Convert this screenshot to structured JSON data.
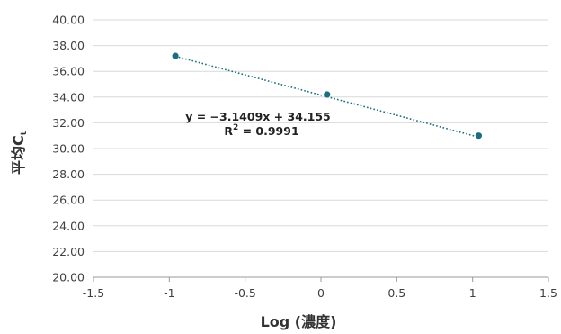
{
  "chart_data": {
    "type": "scatter",
    "xlabel": "Log (濃度)",
    "ylabel": {
      "main": "平均C",
      "subscript": "t"
    },
    "xlim": [
      -1.5,
      1.5
    ],
    "ylim": [
      20,
      40
    ],
    "x_ticks": [
      "-1.5",
      "-1",
      "-0.5",
      "0",
      "0.5",
      "1",
      "1.5"
    ],
    "y_ticks": [
      "20.00",
      "22.00",
      "24.00",
      "26.00",
      "28.00",
      "30.00",
      "32.00",
      "34.00",
      "36.00",
      "38.00",
      "40.00"
    ],
    "grid": true,
    "series": [
      {
        "points": [
          {
            "x": -0.96,
            "y": 37.2
          },
          {
            "x": 0.04,
            "y": 34.2
          },
          {
            "x": 1.04,
            "y": 31.0
          }
        ]
      }
    ],
    "trendline": {
      "style": "dotted",
      "slope": -3.1409,
      "intercept": 34.155,
      "x_range": [
        -0.96,
        1.04
      ]
    },
    "annotation": {
      "equation": "y = −3.1409x + 34.155",
      "r2_prefix": "R",
      "r2_sup": "2",
      "r2_suffix": " = 0.9991"
    },
    "colors": {
      "marker": "#1a6e7e",
      "trendline": "#1a6e7e",
      "grid": "#d9d9d9",
      "axis": "#9a9a9a"
    }
  }
}
